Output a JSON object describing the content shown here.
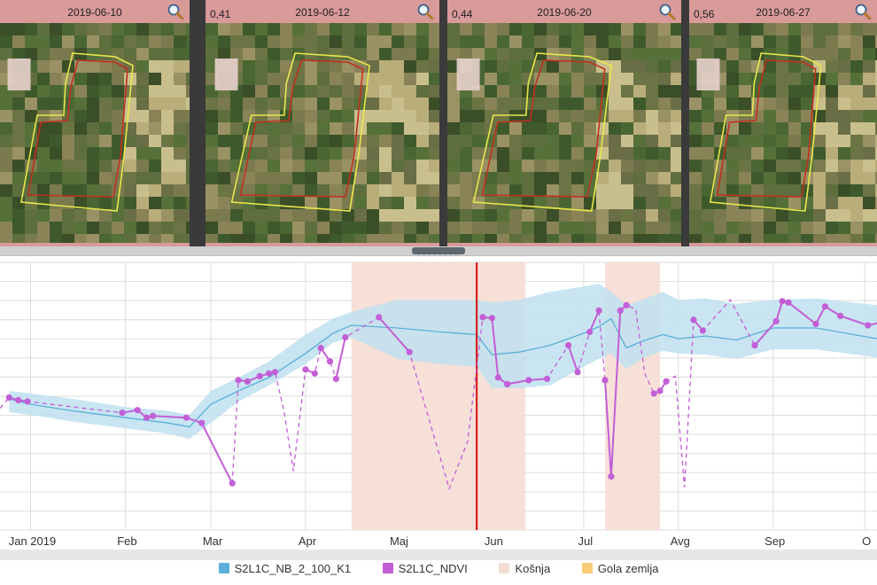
{
  "thumbnails": [
    {
      "date": "2019-06-10",
      "value": ""
    },
    {
      "date": "2019-06-12",
      "value": "0,41"
    },
    {
      "date": "2019-06-20",
      "value": "0,44"
    },
    {
      "date": "2019-06-27",
      "value": "0,56"
    }
  ],
  "icons": {
    "zoom": "magnifier-icon",
    "splitter": "drag-handle-icon"
  },
  "colors": {
    "band": "#bfe0f0",
    "model_line": "#5aafd8",
    "ndvi": "#c25ed6",
    "mowing": "#f6ddd4",
    "bare_soil": "#f8cc7a",
    "cursor": "#d62020",
    "grid": "#dddddd"
  },
  "chart_data": {
    "type": "line",
    "xlabel": "",
    "ylabel": "",
    "x_range": [
      "2018-12-22",
      "2019-10-05"
    ],
    "y_range": [
      0,
      1
    ],
    "grid": true,
    "legend_position": "bottom",
    "tick_labels": [
      {
        "date": "2019-01-01",
        "label": "Jan 2019"
      },
      {
        "date": "2019-02-01",
        "label": "Feb"
      },
      {
        "date": "2019-03-01",
        "label": "Mar"
      },
      {
        "date": "2019-04-01",
        "label": "Apr"
      },
      {
        "date": "2019-05-01",
        "label": "Maj"
      },
      {
        "date": "2019-06-01",
        "label": "Jun"
      },
      {
        "date": "2019-07-01",
        "label": "Jul"
      },
      {
        "date": "2019-08-01",
        "label": "Avg"
      },
      {
        "date": "2019-09-01",
        "label": "Sep"
      },
      {
        "date": "2019-10-01",
        "label": "O"
      }
    ],
    "mowing_periods": [
      [
        "2019-04-16",
        "2019-06-12"
      ],
      [
        "2019-07-08",
        "2019-07-26"
      ]
    ],
    "current_date": "2019-05-27",
    "legend": [
      {
        "name": "S2L1C_NB_2_100_K1",
        "color": "#5aafd8"
      },
      {
        "name": "S2L1C_NDVI",
        "color": "#c25ed6"
      },
      {
        "name": "Košnja",
        "color": "#f6ddd4"
      },
      {
        "name": "Gola zemlja",
        "color": "#f8cc7a"
      }
    ],
    "model_series": {
      "name": "S2L1C_NB_2_100_K1",
      "dates": [
        "2018-12-25",
        "2019-01-01",
        "2019-01-15",
        "2019-02-01",
        "2019-02-15",
        "2019-02-22",
        "2019-03-01",
        "2019-03-10",
        "2019-03-20",
        "2019-04-01",
        "2019-04-10",
        "2019-04-16",
        "2019-05-01",
        "2019-05-15",
        "2019-05-27",
        "2019-06-01",
        "2019-06-10",
        "2019-06-20",
        "2019-07-01",
        "2019-07-06",
        "2019-07-10",
        "2019-07-15",
        "2019-07-20",
        "2019-07-27",
        "2019-08-01",
        "2019-08-10",
        "2019-08-20",
        "2019-09-01",
        "2019-09-15",
        "2019-10-05"
      ],
      "mean": [
        0.49,
        0.47,
        0.445,
        0.42,
        0.4,
        0.385,
        0.47,
        0.52,
        0.57,
        0.66,
        0.735,
        0.765,
        0.755,
        0.74,
        0.73,
        0.655,
        0.665,
        0.69,
        0.735,
        0.76,
        0.79,
        0.68,
        0.705,
        0.73,
        0.715,
        0.725,
        0.71,
        0.755,
        0.755,
        0.715
      ],
      "lower": [
        0.44,
        0.43,
        0.405,
        0.38,
        0.36,
        0.34,
        0.4,
        0.48,
        0.54,
        0.62,
        0.7,
        0.72,
        0.64,
        0.62,
        0.61,
        0.53,
        0.53,
        0.54,
        0.61,
        0.64,
        0.66,
        0.6,
        0.64,
        0.67,
        0.66,
        0.655,
        0.64,
        0.675,
        0.675,
        0.645
      ],
      "upper": [
        0.52,
        0.51,
        0.49,
        0.46,
        0.445,
        0.43,
        0.52,
        0.57,
        0.63,
        0.73,
        0.79,
        0.815,
        0.86,
        0.86,
        0.86,
        0.85,
        0.86,
        0.89,
        0.91,
        0.92,
        0.89,
        0.84,
        0.86,
        0.89,
        0.86,
        0.865,
        0.845,
        0.86,
        0.865,
        0.84
      ]
    },
    "ndvi_series": {
      "name": "S2L1C_NDVI",
      "points": [
        [
          "2018-12-22",
          0.455
        ],
        [
          "2018-12-25",
          0.495
        ],
        [
          "2018-12-28",
          0.485
        ],
        [
          "2018-12-31",
          0.48
        ],
        [
          "2019-01-31",
          0.438
        ],
        [
          "2019-02-05",
          0.448
        ],
        [
          "2019-02-08",
          0.42
        ],
        [
          "2019-02-10",
          0.426
        ],
        [
          "2019-02-21",
          0.42
        ],
        [
          "2019-02-26",
          0.4
        ],
        [
          "2019-03-08",
          0.175
        ],
        [
          "2019-03-10",
          0.56
        ],
        [
          "2019-03-13",
          0.555
        ],
        [
          "2019-03-17",
          0.575
        ],
        [
          "2019-03-20",
          0.585
        ],
        [
          "2019-03-22",
          0.59
        ],
        [
          "2019-03-25",
          0.44
        ],
        [
          "2019-03-28",
          0.22
        ],
        [
          "2019-04-01",
          0.6
        ],
        [
          "2019-04-04",
          0.585
        ],
        [
          "2019-04-06",
          0.68
        ],
        [
          "2019-04-09",
          0.63
        ],
        [
          "2019-04-11",
          0.565
        ],
        [
          "2019-04-14",
          0.72
        ],
        [
          "2019-04-25",
          0.795
        ],
        [
          "2019-05-05",
          0.665
        ],
        [
          "2019-05-18",
          0.155
        ],
        [
          "2019-05-24",
          0.33
        ],
        [
          "2019-05-29",
          0.795
        ],
        [
          "2019-06-01",
          0.792
        ],
        [
          "2019-06-03",
          0.57
        ],
        [
          "2019-06-06",
          0.545
        ],
        [
          "2019-06-13",
          0.56
        ],
        [
          "2019-06-19",
          0.565
        ],
        [
          "2019-06-26",
          0.69
        ],
        [
          "2019-06-29",
          0.59
        ],
        [
          "2019-07-03",
          0.74
        ],
        [
          "2019-07-06",
          0.82
        ],
        [
          "2019-07-08",
          0.56
        ],
        [
          "2019-07-10",
          0.2
        ],
        [
          "2019-07-13",
          0.82
        ],
        [
          "2019-07-15",
          0.84
        ],
        [
          "2019-07-18",
          0.825
        ],
        [
          "2019-07-21",
          0.585
        ],
        [
          "2019-07-24",
          0.51
        ],
        [
          "2019-07-26",
          0.52
        ],
        [
          "2019-07-28",
          0.555
        ],
        [
          "2019-07-31",
          0.575
        ],
        [
          "2019-08-03",
          0.16
        ],
        [
          "2019-08-06",
          0.785
        ],
        [
          "2019-08-09",
          0.745
        ],
        [
          "2019-08-18",
          0.86
        ],
        [
          "2019-08-26",
          0.69
        ],
        [
          "2019-09-02",
          0.78
        ],
        [
          "2019-09-04",
          0.855
        ],
        [
          "2019-09-06",
          0.85
        ],
        [
          "2019-09-15",
          0.77
        ],
        [
          "2019-09-18",
          0.835
        ],
        [
          "2019-09-23",
          0.8
        ],
        [
          "2019-10-02",
          0.765
        ],
        [
          "2019-10-10",
          0.785
        ],
        [
          "2019-10-14",
          0.735
        ]
      ],
      "solid_segments": [
        [
          1,
          3
        ],
        [
          4,
          10
        ],
        [
          11,
          15
        ],
        [
          18,
          19
        ],
        [
          20,
          21
        ],
        [
          22,
          23
        ],
        [
          24,
          25
        ],
        [
          28,
          33
        ],
        [
          34,
          35
        ],
        [
          36,
          37
        ],
        [
          38,
          40
        ],
        [
          40,
          41
        ],
        [
          44,
          46
        ],
        [
          49,
          50
        ],
        [
          52,
          54
        ],
        [
          55,
          56
        ],
        [
          56,
          58
        ],
        [
          58,
          61
        ]
      ]
    }
  }
}
